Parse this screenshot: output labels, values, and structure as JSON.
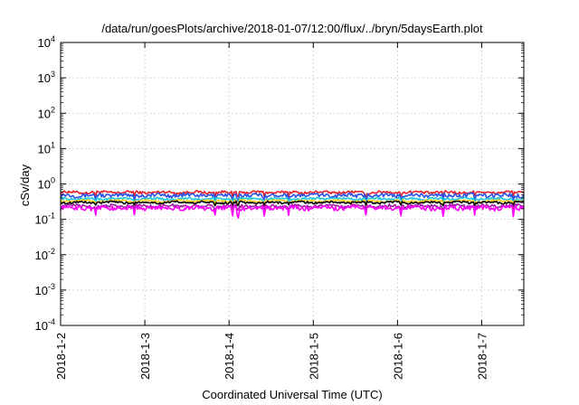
{
  "chart_data": {
    "type": "line",
    "title": "/data/run/goesPlots/archive/2018-01-07/12:00/flux/../bryn/5daysEarth.plot",
    "xlabel": "Coordinated Universal Time (UTC)",
    "ylabel": "cSv/day",
    "yscale": "log",
    "ylim": [
      0.0001,
      10000
    ],
    "xlim": [
      "2018-01-02T00:00",
      "2018-01-07T12:00"
    ],
    "y_ticks": [
      {
        "value": 0.0001,
        "base": "10",
        "exp": "-4"
      },
      {
        "value": 0.001,
        "base": "10",
        "exp": "-3"
      },
      {
        "value": 0.01,
        "base": "10",
        "exp": "-2"
      },
      {
        "value": 0.1,
        "base": "10",
        "exp": "-1"
      },
      {
        "value": 1,
        "base": "10",
        "exp": "0"
      },
      {
        "value": 10,
        "base": "10",
        "exp": "1"
      },
      {
        "value": 100,
        "base": "10",
        "exp": "2"
      },
      {
        "value": 1000,
        "base": "10",
        "exp": "3"
      },
      {
        "value": 10000,
        "base": "10",
        "exp": "4"
      }
    ],
    "x_ticks": [
      {
        "date": "2018-01-02",
        "label": "2018-1-2"
      },
      {
        "date": "2018-01-03",
        "label": "2018-1-3"
      },
      {
        "date": "2018-01-04",
        "label": "2018-1-4"
      },
      {
        "date": "2018-01-05",
        "label": "2018-1-5"
      },
      {
        "date": "2018-01-06",
        "label": "2018-1-6"
      },
      {
        "date": "2018-01-07",
        "label": "2018-1-7"
      }
    ],
    "grid": true,
    "legend": "none",
    "series": [
      {
        "color": "#e8202a",
        "level": 0.58,
        "noise": 0.05,
        "dip_depth": 0.3
      },
      {
        "color": "#2a52e8",
        "level": 0.48,
        "noise": 0.06,
        "dip_depth": 0.35
      },
      {
        "color": "#20c8d8",
        "level": 0.38,
        "noise": 0.03,
        "dip_depth": 0.25
      },
      {
        "color": "#ffd21e",
        "level": 0.33,
        "noise": 0.02,
        "dip_depth": 0.2
      },
      {
        "color": "#000000",
        "level": 0.3,
        "noise": 0.02,
        "dip_depth": 0.2
      },
      {
        "color": "#a020a0",
        "level": 0.24,
        "noise": 0.025,
        "dip_depth": 0.25
      },
      {
        "color": "#ff00ff",
        "level": 0.21,
        "noise": 0.03,
        "dip_depth": 0.5
      }
    ],
    "dip_dates": [
      "2018-01-02T10:00",
      "2018-01-02T21:00",
      "2018-01-03T20:00",
      "2018-01-04T01:00",
      "2018-01-04T02:30",
      "2018-01-04T10:00",
      "2018-01-04T17:00",
      "2018-01-05T15:00",
      "2018-01-06T01:00",
      "2018-01-06T13:00",
      "2018-01-06T22:00",
      "2018-01-07T09:00"
    ]
  }
}
